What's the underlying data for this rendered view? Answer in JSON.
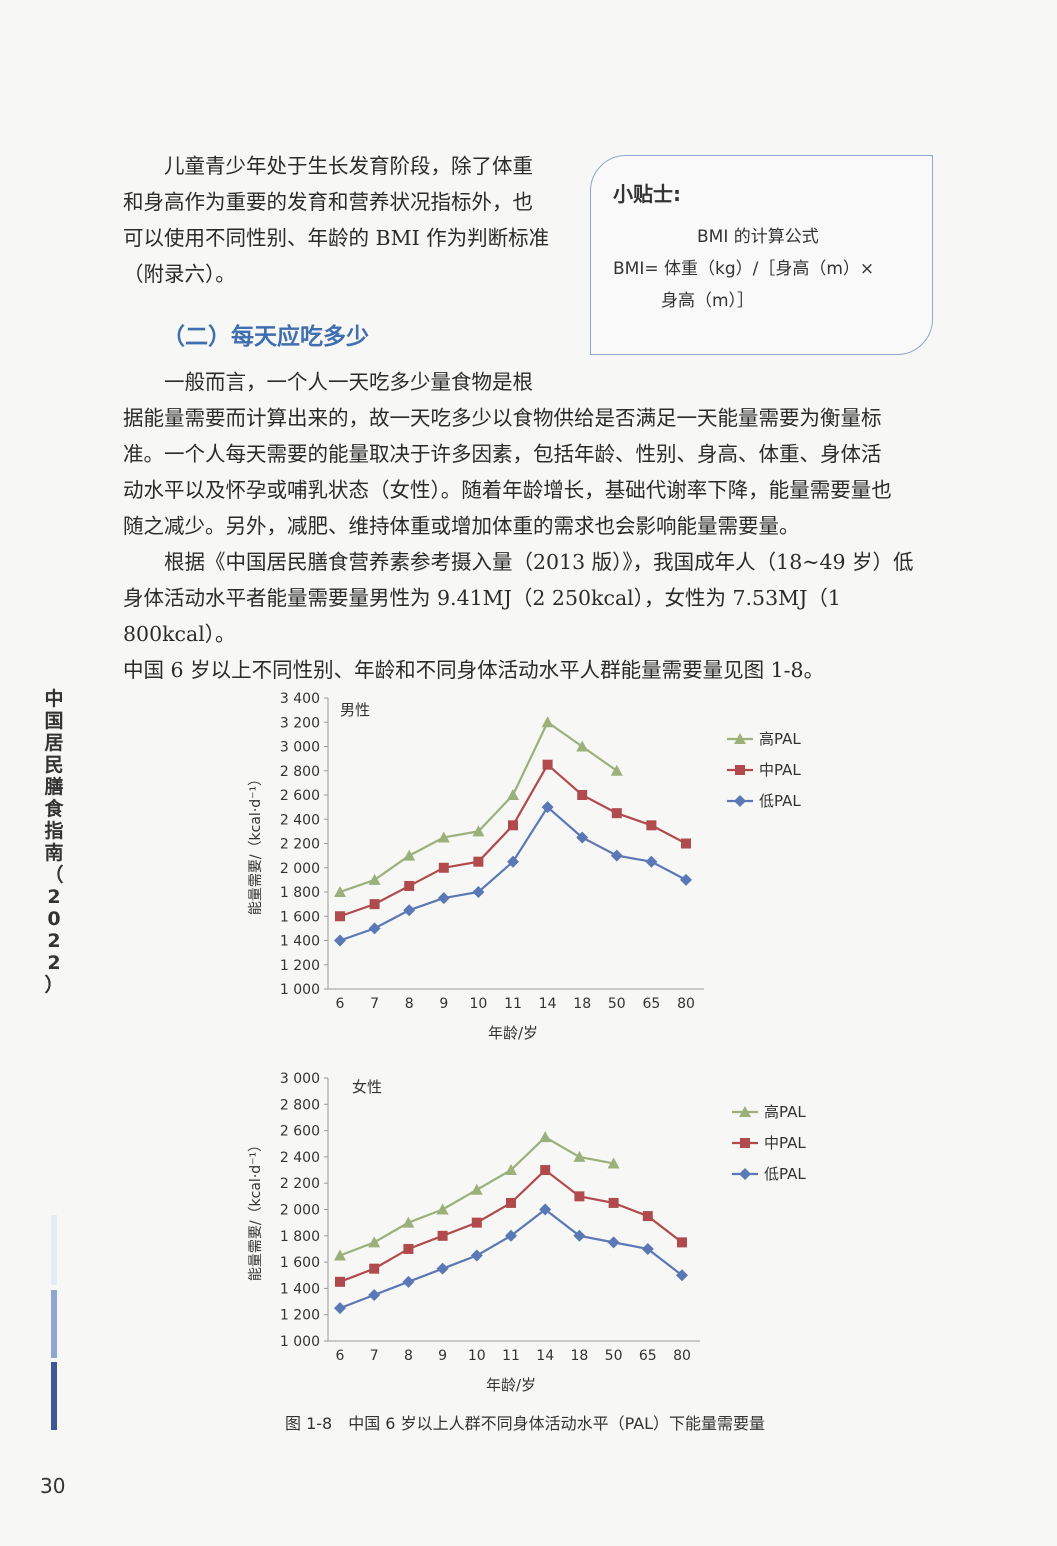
{
  "side_title": "中国居民膳食指南（2022）",
  "intro_paragraph": [
    "儿童青少年处于生长发育阶段，除了体重",
    "和身高作为重要的发育和营养状况指标外，也",
    "可以使用不同性别、年龄的 BMI 作为判断标准",
    "（附录六）。"
  ],
  "tip": {
    "title": "小贴士:",
    "line1": "BMI 的计算公式",
    "line2": "BMI= 体重（kg）/［身高（m）×",
    "line3": "身高（m）］"
  },
  "section_heading": "（二）每天应吃多少",
  "paragraph_1": [
    "一般而言，一个人一天吃多少量食物是根",
    "据能量需要而计算出来的，故一天吃多少以食物供给是否满足一天能量需要为衡量标",
    "准。一个人每天需要的能量取决于许多因素，包括年龄、性别、身高、体重、身体活",
    "动水平以及怀孕或哺乳状态（女性）。随着年龄增长，基础代谢率下降，能量需要量也",
    "随之减少。另外，减肥、维持体重或增加体重的需求也会影响能量需要量。"
  ],
  "paragraph_2": [
    "根据《中国居民膳食营养素参考摄入量（2013 版）》，我国成年人（18~49 岁）低",
    "身体活动水平者能量需要量男性为 9.41MJ（2 250kcal），女性为 7.53MJ（1 800kcal）。",
    "中国 6 岁以上不同性别、年龄和不同身体活动水平人群能量需要量见图 1-8。"
  ],
  "chart_data": [
    {
      "type": "line",
      "title": "男性",
      "xlabel": "年龄/岁",
      "ylabel": "能量需要/（kcal·d⁻¹）",
      "categories": [
        "6",
        "7",
        "8",
        "9",
        "10",
        "11",
        "14",
        "18",
        "50",
        "65",
        "80"
      ],
      "ylim": [
        1000,
        3400
      ],
      "yticks": [
        "1 000",
        "1 200",
        "1 400",
        "1 600",
        "1 800",
        "2 000",
        "2 200",
        "2 400",
        "2 600",
        "2 800",
        "3 000",
        "3 200",
        "3 400"
      ],
      "legend_position": "right",
      "series": [
        {
          "name": "高PAL",
          "color": "#9bb07a",
          "marker": "triangle",
          "values": [
            1800,
            1900,
            2100,
            2250,
            2300,
            2600,
            3200,
            3000,
            2800,
            null,
            null
          ]
        },
        {
          "name": "中PAL",
          "color": "#b04a4d",
          "marker": "square",
          "values": [
            1600,
            1700,
            1850,
            2000,
            2050,
            2350,
            2850,
            2600,
            2450,
            2350,
            2200
          ]
        },
        {
          "name": "低PAL",
          "color": "#5b78b6",
          "marker": "diamond",
          "values": [
            1400,
            1500,
            1650,
            1750,
            1800,
            2050,
            2500,
            2250,
            2100,
            2050,
            1900
          ]
        }
      ]
    },
    {
      "type": "line",
      "title": "女性",
      "xlabel": "年龄/岁",
      "ylabel": "能量需要/（kcal·d⁻¹）",
      "categories": [
        "6",
        "7",
        "8",
        "9",
        "10",
        "11",
        "14",
        "18",
        "50",
        "65",
        "80"
      ],
      "ylim": [
        1000,
        3000
      ],
      "yticks": [
        "1 000",
        "1 200",
        "1 400",
        "1 600",
        "1 800",
        "2 000",
        "2 200",
        "2 400",
        "2 600",
        "2 800",
        "3 000"
      ],
      "legend_position": "right",
      "series": [
        {
          "name": "高PAL",
          "color": "#9bb07a",
          "marker": "triangle",
          "values": [
            1650,
            1750,
            1900,
            2000,
            2150,
            2300,
            2550,
            2400,
            2350,
            null,
            null
          ]
        },
        {
          "name": "中PAL",
          "color": "#b04a4d",
          "marker": "square",
          "values": [
            1450,
            1550,
            1700,
            1800,
            1900,
            2050,
            2300,
            2100,
            2050,
            1950,
            1750
          ]
        },
        {
          "name": "低PAL",
          "color": "#5b78b6",
          "marker": "diamond",
          "values": [
            1250,
            1350,
            1450,
            1550,
            1650,
            1800,
            2000,
            1800,
            1750,
            1700,
            1500
          ]
        }
      ]
    }
  ],
  "caption": "图 1-8　中国 6 岁以上人群不同身体活动水平（PAL）下能量需要量",
  "page_number": "30",
  "colors": {
    "accent": "#3f6fb0",
    "tip_border": "#8fa7c9"
  }
}
